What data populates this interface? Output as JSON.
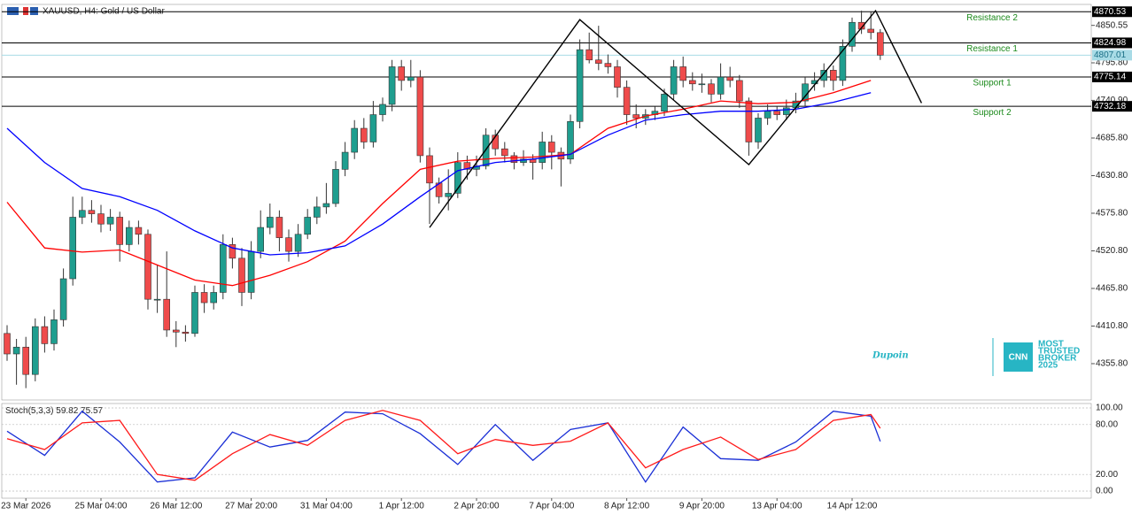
{
  "header": "XAUUSD, H4:  Gold / US Dollar",
  "watermark": {
    "brand": "Dupoin",
    "badge": "CNN",
    "lines": [
      "MOST",
      "TRUSTED",
      "BROKER",
      "2025"
    ]
  },
  "chart_data": {
    "type": "candlestick",
    "up_color": "#1f9e8f",
    "down_color": "#ef4b4b",
    "candles": [
      [
        4400,
        4412,
        4360,
        4370
      ],
      [
        4370,
        4392,
        4325,
        4380
      ],
      [
        4380,
        4395,
        4320,
        4340
      ],
      [
        4340,
        4422,
        4330,
        4410
      ],
      [
        4410,
        4425,
        4372,
        4385
      ],
      [
        4385,
        4435,
        4375,
        4420
      ],
      [
        4420,
        4495,
        4410,
        4480
      ],
      [
        4480,
        4600,
        4470,
        4570
      ],
      [
        4570,
        4600,
        4560,
        4580
      ],
      [
        4580,
        4595,
        4562,
        4575
      ],
      [
        4575,
        4588,
        4548,
        4560
      ],
      [
        4560,
        4582,
        4550,
        4570
      ],
      [
        4570,
        4578,
        4505,
        4530
      ],
      [
        4530,
        4565,
        4520,
        4555
      ],
      [
        4555,
        4565,
        4530,
        4545
      ],
      [
        4545,
        4552,
        4435,
        4450
      ],
      [
        4450,
        4500,
        4430,
        4450
      ],
      [
        4450,
        4520,
        4395,
        4405
      ],
      [
        4405,
        4418,
        4380,
        4402
      ],
      [
        4402,
        4412,
        4388,
        4400
      ],
      [
        4400,
        4470,
        4395,
        4460
      ],
      [
        4460,
        4472,
        4430,
        4445
      ],
      [
        4445,
        4470,
        4435,
        4460
      ],
      [
        4460,
        4545,
        4450,
        4530
      ],
      [
        4530,
        4540,
        4495,
        4510
      ],
      [
        4510,
        4525,
        4440,
        4460
      ],
      [
        4460,
        4535,
        4450,
        4520
      ],
      [
        4520,
        4580,
        4510,
        4555
      ],
      [
        4555,
        4590,
        4545,
        4570
      ],
      [
        4570,
        4580,
        4520,
        4540
      ],
      [
        4540,
        4552,
        4505,
        4520
      ],
      [
        4520,
        4560,
        4512,
        4545
      ],
      [
        4545,
        4582,
        4538,
        4570
      ],
      [
        4570,
        4600,
        4560,
        4585
      ],
      [
        4585,
        4620,
        4575,
        4590
      ],
      [
        4590,
        4652,
        4585,
        4640
      ],
      [
        4640,
        4680,
        4630,
        4665
      ],
      [
        4665,
        4712,
        4655,
        4700
      ],
      [
        4700,
        4715,
        4670,
        4680
      ],
      [
        4680,
        4740,
        4672,
        4720
      ],
      [
        4720,
        4745,
        4710,
        4735
      ],
      [
        4735,
        4800,
        4725,
        4790
      ],
      [
        4790,
        4800,
        4755,
        4770
      ],
      [
        4770,
        4800,
        4760,
        4775
      ],
      [
        4775,
        4785,
        4650,
        4660
      ],
      [
        4660,
        4672,
        4560,
        4620
      ],
      [
        4620,
        4628,
        4590,
        4600
      ],
      [
        4600,
        4640,
        4580,
        4605
      ],
      [
        4605,
        4665,
        4598,
        4650
      ],
      [
        4650,
        4660,
        4625,
        4640
      ],
      [
        4640,
        4660,
        4630,
        4645
      ],
      [
        4645,
        4700,
        4640,
        4690
      ],
      [
        4690,
        4698,
        4660,
        4670
      ],
      [
        4670,
        4680,
        4650,
        4660
      ],
      [
        4660,
        4665,
        4640,
        4650
      ],
      [
        4650,
        4668,
        4645,
        4655
      ],
      [
        4655,
        4662,
        4625,
        4650
      ],
      [
        4650,
        4695,
        4640,
        4680
      ],
      [
        4680,
        4690,
        4640,
        4665
      ],
      [
        4665,
        4672,
        4615,
        4655
      ],
      [
        4655,
        4720,
        4648,
        4710
      ],
      [
        4710,
        4830,
        4700,
        4815
      ],
      [
        4815,
        4840,
        4795,
        4800
      ],
      [
        4800,
        4850,
        4785,
        4795
      ],
      [
        4795,
        4808,
        4780,
        4790
      ],
      [
        4790,
        4800,
        4745,
        4760
      ],
      [
        4760,
        4770,
        4705,
        4720
      ],
      [
        4720,
        4735,
        4700,
        4715
      ],
      [
        4715,
        4728,
        4705,
        4720
      ],
      [
        4720,
        4732,
        4712,
        4725
      ],
      [
        4725,
        4758,
        4718,
        4750
      ],
      [
        4750,
        4800,
        4742,
        4790
      ],
      [
        4790,
        4805,
        4760,
        4770
      ],
      [
        4770,
        4782,
        4755,
        4765
      ],
      [
        4765,
        4780,
        4752,
        4765
      ],
      [
        4765,
        4772,
        4738,
        4750
      ],
      [
        4750,
        4795,
        4742,
        4775
      ],
      [
        4775,
        4790,
        4760,
        4770
      ],
      [
        4770,
        4778,
        4730,
        4740
      ],
      [
        4740,
        4745,
        4660,
        4680
      ],
      [
        4680,
        4722,
        4670,
        4715
      ],
      [
        4715,
        4735,
        4705,
        4725
      ],
      [
        4725,
        4732,
        4712,
        4720
      ],
      [
        4720,
        4742,
        4712,
        4730
      ],
      [
        4730,
        4752,
        4722,
        4740
      ],
      [
        4740,
        4775,
        4732,
        4765
      ],
      [
        4765,
        4782,
        4755,
        4770
      ],
      [
        4770,
        4795,
        4760,
        4785
      ],
      [
        4785,
        4792,
        4755,
        4770
      ],
      [
        4770,
        4830,
        4762,
        4820
      ],
      [
        4820,
        4862,
        4812,
        4855
      ],
      [
        4855,
        4872,
        4838,
        4845
      ],
      [
        4845,
        4870,
        4830,
        4840
      ],
      [
        4840,
        4845,
        4800,
        4807.01
      ]
    ],
    "categories": [
      null,
      null,
      "23 Mar 2026",
      null,
      null,
      null,
      null,
      null,
      null,
      null,
      "25 Mar 04:00",
      null,
      null,
      null,
      null,
      null,
      null,
      null,
      "26 Mar 12:00",
      null,
      null,
      null,
      null,
      null,
      null,
      null,
      "27 Mar 20:00",
      null,
      null,
      null,
      null,
      null,
      null,
      null,
      "31 Mar 04:00",
      null,
      null,
      null,
      null,
      null,
      null,
      null,
      "1 Apr 12:00",
      null,
      null,
      null,
      null,
      null,
      null,
      null,
      "2 Apr 20:00",
      null,
      null,
      null,
      null,
      null,
      null,
      null,
      "7 Apr 04:00",
      null,
      null,
      null,
      null,
      null,
      null,
      null,
      "8 Apr 12:00",
      null,
      null,
      null,
      null,
      null,
      null,
      null,
      "9 Apr 20:00",
      null,
      null,
      null,
      null,
      null,
      null,
      null,
      "13 Apr 04:00",
      null,
      null,
      null,
      null,
      null,
      null,
      null,
      "14 Apr 12:00",
      null,
      null,
      null
    ],
    "ylim": [
      4302.7,
      4881.2
    ],
    "yticks": [
      4850.55,
      {
        "value": 4795.8,
        "label": "4795.80"
      },
      {
        "value": 4740.9,
        "label": "4740.90"
      },
      {
        "value": 4685.8,
        "label": "4685.80"
      },
      {
        "value": 4630.8,
        "label": "4630.80"
      },
      {
        "value": 4575.8,
        "label": "4575.80"
      },
      {
        "value": 4520.8,
        "label": "4520.80"
      },
      {
        "value": 4465.8,
        "label": "4465.80"
      },
      {
        "value": 4410.8,
        "label": "4410.80"
      },
      {
        "value": 4355.8,
        "label": "4355.80"
      }
    ],
    "levels": [
      {
        "name": "Resistance 2",
        "value": 4870.53,
        "color": "#000000"
      },
      {
        "name": "Resistance 1",
        "value": 4824.98,
        "color": "#000000"
      },
      {
        "value": 4807.01,
        "color": "#a8dbe6"
      },
      {
        "name": "Support 1",
        "value": 4775.14,
        "color": "#000000"
      },
      {
        "name": "Support 2",
        "value": 4732.18,
        "color": "#000000"
      }
    ],
    "series": [
      {
        "color": "#ff0000",
        "x": [
          0,
          4,
          8,
          12,
          16,
          20,
          24,
          28,
          32,
          36,
          40,
          44,
          48,
          52,
          56,
          60,
          64,
          68,
          72,
          76,
          80,
          84,
          88,
          92
        ],
        "values": [
          4592,
          4525,
          4519,
          4522,
          4500,
          4478,
          4470,
          4485,
          4505,
          4535,
          4590,
          4640,
          4652,
          4656,
          4658,
          4662,
          4700,
          4718,
          4728,
          4740,
          4736,
          4738,
          4752,
          4770
        ]
      },
      {
        "color": "#0000ff",
        "x": [
          0,
          4,
          8,
          12,
          16,
          20,
          24,
          28,
          32,
          36,
          40,
          44,
          48,
          52,
          56,
          60,
          64,
          68,
          72,
          76,
          80,
          84,
          88,
          92
        ],
        "values": [
          4700,
          4650,
          4612,
          4600,
          4580,
          4550,
          4525,
          4515,
          4518,
          4528,
          4560,
          4600,
          4638,
          4650,
          4655,
          4662,
          4690,
          4712,
          4720,
          4725,
          4725,
          4728,
          4738,
          4752
        ]
      }
    ],
    "pattern": {
      "color": "#000000",
      "x": [
        45,
        61,
        79,
        92.5,
        97.4
      ],
      "values": [
        4555,
        4859,
        4647,
        4872,
        4737
      ]
    },
    "indicator": {
      "title": "Stoch(5,3,3)",
      "ylim": [
        -8.5,
        105.3
      ],
      "yticks": [
        {
          "value": 100,
          "label": "100.00"
        },
        {
          "value": 80,
          "label": "80.00"
        },
        {
          "value": 20,
          "label": "20.00"
        },
        {
          "value": 0,
          "label": "0.00"
        }
      ],
      "x": [
        0,
        4,
        8,
        12,
        16,
        20,
        24,
        28,
        32,
        36,
        40,
        44,
        48,
        52,
        56,
        60,
        64,
        68,
        72,
        76,
        80,
        84,
        88,
        92,
        93
      ],
      "series": [
        {
          "color": "#1a2fd6",
          "values": [
            72,
            43,
            96,
            59,
            11,
            16,
            71,
            53,
            61,
            95,
            93,
            69,
            32,
            80,
            37,
            74,
            82,
            11,
            77,
            39,
            37,
            59,
            96,
            90,
            59.82
          ]
        },
        {
          "color": "#ff1a1a",
          "values": [
            63,
            50,
            82,
            85,
            20,
            13,
            45,
            68,
            55,
            85,
            97,
            85,
            45,
            62,
            55,
            60,
            82,
            28,
            50,
            65,
            38,
            50,
            85,
            92,
            75.57
          ]
        }
      ]
    }
  }
}
